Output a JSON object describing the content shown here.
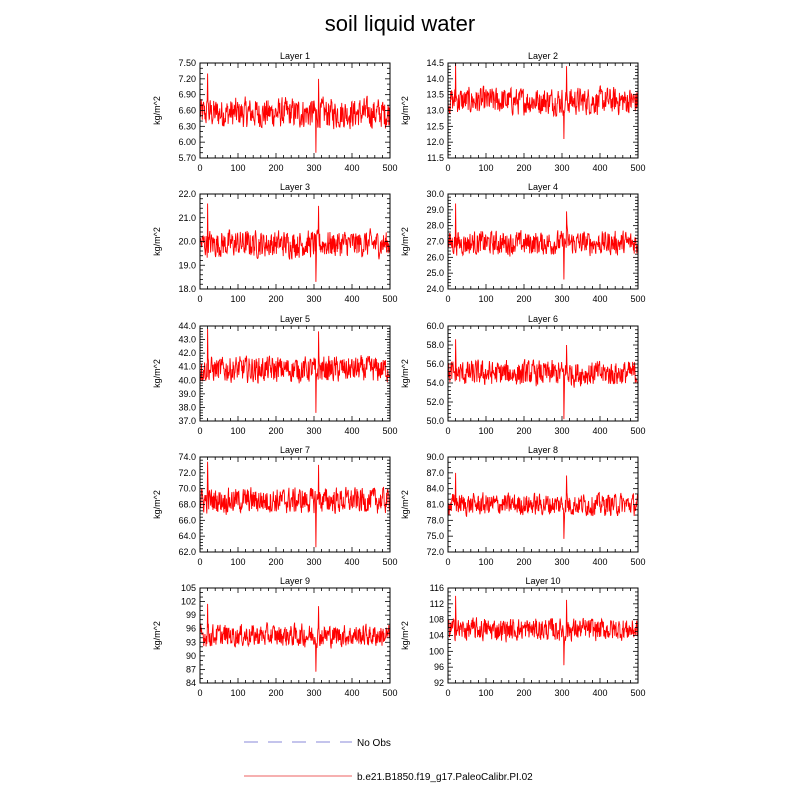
{
  "figure": {
    "title": "soil liquid water"
  },
  "legend": [
    {
      "label": "No Obs",
      "color": "#a0a0e0",
      "dash": true
    },
    {
      "label": "b.e21.B1850.f19_g17.PaleoCalibr.PI.02",
      "color": "#f08080",
      "dash": false
    }
  ],
  "chart_data": [
    {
      "type": "line",
      "title": "Layer 1",
      "ylabel": "kg/m^2",
      "xlim": [
        0,
        500
      ],
      "xticks": [
        "0",
        "100",
        "200",
        "300",
        "400",
        "500"
      ],
      "ylim": [
        5.7,
        7.5
      ],
      "yticks": [
        "5.70",
        "6.00",
        "6.30",
        "6.60",
        "6.90",
        "7.20",
        "7.50"
      ],
      "yminor": 0.1,
      "series": [
        {
          "color": "#ff0000",
          "n": 500,
          "mean": 6.55,
          "amplitude": 0.3,
          "spike": 7.3,
          "min_value": 5.8,
          "max_value": 7.2
        }
      ]
    },
    {
      "type": "line",
      "title": "Layer 2",
      "ylabel": "kg/m^2",
      "xlim": [
        0,
        500
      ],
      "xticks": [
        "0",
        "100",
        "200",
        "300",
        "400",
        "500"
      ],
      "ylim": [
        11.5,
        14.5
      ],
      "yticks": [
        "11.5",
        "12.0",
        "12.5",
        "13.0",
        "13.5",
        "14.0",
        "14.5"
      ],
      "yminor": 0.1,
      "series": [
        {
          "color": "#ff0000",
          "n": 500,
          "mean": 13.3,
          "amplitude": 0.45,
          "spike": 14.5,
          "min_value": 12.1,
          "max_value": 14.4
        }
      ]
    },
    {
      "type": "line",
      "title": "Layer 3",
      "ylabel": "kg/m^2",
      "xlim": [
        0,
        500
      ],
      "xticks": [
        "0",
        "100",
        "200",
        "300",
        "400",
        "500"
      ],
      "ylim": [
        18.0,
        22.0
      ],
      "yticks": [
        "18.0",
        "19.0",
        "20.0",
        "21.0",
        "22.0"
      ],
      "yminor": 0.2,
      "series": [
        {
          "color": "#ff0000",
          "n": 500,
          "mean": 19.9,
          "amplitude": 0.6,
          "spike": 21.6,
          "min_value": 18.3,
          "max_value": 21.5
        }
      ]
    },
    {
      "type": "line",
      "title": "Layer 4",
      "ylabel": "kg/m^2",
      "xlim": [
        0,
        500
      ],
      "xticks": [
        "0",
        "100",
        "200",
        "300",
        "400",
        "500"
      ],
      "ylim": [
        24.0,
        30.0
      ],
      "yticks": [
        "24.0",
        "25.0",
        "26.0",
        "27.0",
        "28.0",
        "29.0",
        "30.0"
      ],
      "yminor": 0.2,
      "series": [
        {
          "color": "#ff0000",
          "n": 500,
          "mean": 26.9,
          "amplitude": 0.8,
          "spike": 29.4,
          "min_value": 24.6,
          "max_value": 28.9
        }
      ]
    },
    {
      "type": "line",
      "title": "Layer 5",
      "ylabel": "kg/m^2",
      "xlim": [
        0,
        500
      ],
      "xticks": [
        "0",
        "100",
        "200",
        "300",
        "400",
        "500"
      ],
      "ylim": [
        37.0,
        44.0
      ],
      "yticks": [
        "37.0",
        "38.0",
        "39.0",
        "40.0",
        "41.0",
        "42.0",
        "43.0",
        "44.0"
      ],
      "yminor": 0.2,
      "series": [
        {
          "color": "#ff0000",
          "n": 500,
          "mean": 40.8,
          "amplitude": 1.0,
          "spike": 43.8,
          "min_value": 37.6,
          "max_value": 43.6
        }
      ]
    },
    {
      "type": "line",
      "title": "Layer 6",
      "ylabel": "kg/m^2",
      "xlim": [
        0,
        500
      ],
      "xticks": [
        "0",
        "100",
        "200",
        "300",
        "400",
        "500"
      ],
      "ylim": [
        50.0,
        60.0
      ],
      "yticks": [
        "50.0",
        "52.0",
        "54.0",
        "56.0",
        "58.0",
        "60.0"
      ],
      "yminor": 0.4,
      "series": [
        {
          "color": "#ff0000",
          "n": 500,
          "mean": 55.0,
          "amplitude": 1.4,
          "spike": 58.6,
          "min_value": 50.2,
          "max_value": 58.0
        }
      ]
    },
    {
      "type": "line",
      "title": "Layer 7",
      "ylabel": "kg/m^2",
      "xlim": [
        0,
        500
      ],
      "xticks": [
        "0",
        "100",
        "200",
        "300",
        "400",
        "500"
      ],
      "ylim": [
        62.0,
        74.0
      ],
      "yticks": [
        "62.0",
        "64.0",
        "66.0",
        "68.0",
        "70.0",
        "72.0",
        "74.0"
      ],
      "yminor": 0.4,
      "series": [
        {
          "color": "#ff0000",
          "n": 500,
          "mean": 68.5,
          "amplitude": 1.7,
          "spike": 73.4,
          "min_value": 62.6,
          "max_value": 73.0
        }
      ]
    },
    {
      "type": "line",
      "title": "Layer 8",
      "ylabel": "kg/m^2",
      "xlim": [
        0,
        500
      ],
      "xticks": [
        "0",
        "100",
        "200",
        "300",
        "400",
        "500"
      ],
      "ylim": [
        72.0,
        90.0
      ],
      "yticks": [
        "72.0",
        "75.0",
        "78.0",
        "81.0",
        "84.0",
        "87.0",
        "90.0"
      ],
      "yminor": 1.0,
      "series": [
        {
          "color": "#ff0000",
          "n": 500,
          "mean": 81.0,
          "amplitude": 2.2,
          "spike": 87.0,
          "min_value": 74.5,
          "max_value": 86.5
        }
      ]
    },
    {
      "type": "line",
      "title": "Layer 9",
      "ylabel": "kg/m^2",
      "xlim": [
        0,
        500
      ],
      "xticks": [
        "0",
        "100",
        "200",
        "300",
        "400",
        "500"
      ],
      "ylim": [
        84,
        105
      ],
      "yticks": [
        "84",
        "87",
        "90",
        "93",
        "96",
        "99",
        "102",
        "105"
      ],
      "yminor": 1.0,
      "series": [
        {
          "color": "#ff0000",
          "n": 500,
          "mean": 94.5,
          "amplitude": 2.6,
          "spike": 101.5,
          "min_value": 86.5,
          "max_value": 101.0
        }
      ]
    },
    {
      "type": "line",
      "title": "Layer 10",
      "ylabel": "kg/m^2",
      "xlim": [
        0,
        500
      ],
      "xticks": [
        "0",
        "100",
        "200",
        "300",
        "400",
        "500"
      ],
      "ylim": [
        92,
        116
      ],
      "yticks": [
        "92",
        "96",
        "100",
        "104",
        "108",
        "112",
        "116"
      ],
      "yminor": 1.0,
      "series": [
        {
          "color": "#ff0000",
          "n": 500,
          "mean": 105.5,
          "amplitude": 3.0,
          "spike": 114.0,
          "min_value": 96.5,
          "max_value": 113.0
        }
      ]
    }
  ]
}
